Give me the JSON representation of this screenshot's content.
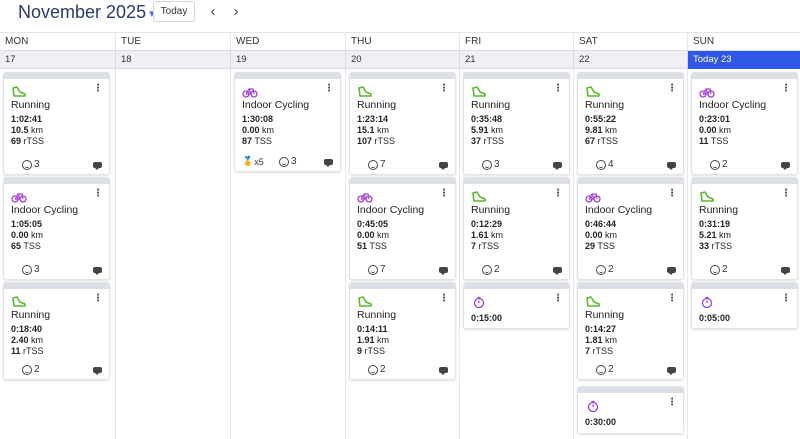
{
  "header": {
    "month_title": "November 2025",
    "today_button": "Today",
    "prev_label": "‹",
    "next_label": "›"
  },
  "colors": {
    "today_blue": "#2f57e6",
    "run_green": "#5cb82e",
    "cycle_purple": "#a23fd6",
    "timer_purple": "#9b3fe0"
  },
  "days": [
    {
      "name": "MON",
      "date": "17"
    },
    {
      "name": "TUE",
      "date": "18"
    },
    {
      "name": "WED",
      "date": "19"
    },
    {
      "name": "THU",
      "date": "20"
    },
    {
      "name": "FRI",
      "date": "21"
    },
    {
      "name": "SAT",
      "date": "22"
    },
    {
      "name": "SUN",
      "date": "Today 23"
    }
  ],
  "workouts": {
    "mon": [
      {
        "sport": "Running",
        "icon": "shoe-icon",
        "time": "1:02:41",
        "dist": "10.5",
        "dist_unit": "km",
        "load": "69",
        "load_unit": "rTSS",
        "feel": "3"
      },
      {
        "sport": "Indoor Cycling",
        "icon": "bike-icon",
        "time": "1:05:05",
        "dist": "0.00",
        "dist_unit": "km",
        "load": "65",
        "load_unit": "TSS",
        "feel": "3"
      },
      {
        "sport": "Running",
        "icon": "shoe-icon",
        "time": "0:18:40",
        "dist": "2.40",
        "dist_unit": "km",
        "load": "11",
        "load_unit": "rTSS",
        "feel": "2"
      }
    ],
    "wed": [
      {
        "sport": "Indoor Cycling",
        "icon": "bike-icon",
        "time": "1:30:08",
        "dist": "0.00",
        "dist_unit": "km",
        "load": "87",
        "load_unit": "TSS",
        "medals": "x5",
        "feel": "3"
      }
    ],
    "thu": [
      {
        "sport": "Running",
        "icon": "shoe-icon",
        "time": "1:23:14",
        "dist": "15.1",
        "dist_unit": "km",
        "load": "107",
        "load_unit": "rTSS",
        "feel": "7"
      },
      {
        "sport": "Indoor Cycling",
        "icon": "bike-icon",
        "time": "0:45:05",
        "dist": "0.00",
        "dist_unit": "km",
        "load": "51",
        "load_unit": "TSS",
        "feel": "7"
      },
      {
        "sport": "Running",
        "icon": "shoe-icon",
        "time": "0:14:11",
        "dist": "1.91",
        "dist_unit": "km",
        "load": "9",
        "load_unit": "rTSS",
        "feel": "2"
      }
    ],
    "fri": [
      {
        "sport": "Running",
        "icon": "shoe-icon",
        "time": "0:35:48",
        "dist": "5.91",
        "dist_unit": "km",
        "load": "37",
        "load_unit": "rTSS",
        "feel": "3"
      },
      {
        "sport": "Running",
        "icon": "shoe-icon",
        "time": "0:12:29",
        "dist": "1.61",
        "dist_unit": "km",
        "load": "7",
        "load_unit": "rTSS",
        "feel": "2"
      },
      {
        "icon": "timer-icon",
        "time": "0:15:00"
      }
    ],
    "sat": [
      {
        "sport": "Running",
        "icon": "shoe-icon",
        "time": "0:55:22",
        "dist": "9.81",
        "dist_unit": "km",
        "load": "67",
        "load_unit": "rTSS",
        "feel": "4"
      },
      {
        "sport": "Indoor Cycling",
        "icon": "bike-icon",
        "time": "0:46:44",
        "dist": "0.00",
        "dist_unit": "km",
        "load": "29",
        "load_unit": "TSS",
        "feel": "2"
      },
      {
        "sport": "Running",
        "icon": "shoe-icon",
        "time": "0:14:27",
        "dist": "1.81",
        "dist_unit": "km",
        "load": "7",
        "load_unit": "rTSS",
        "feel": "2"
      },
      {
        "icon": "timer-icon",
        "time": "0:30:00"
      }
    ],
    "sun": [
      {
        "sport": "Indoor Cycling",
        "icon": "bike-icon",
        "time": "0:23:01",
        "dist": "0.00",
        "dist_unit": "km",
        "load": "11",
        "load_unit": "TSS",
        "feel": "2"
      },
      {
        "sport": "Running",
        "icon": "shoe-icon",
        "time": "0:31:19",
        "dist": "5.21",
        "dist_unit": "km",
        "load": "33",
        "load_unit": "rTSS",
        "feel": "2"
      },
      {
        "icon": "timer-icon",
        "time": "0:05:00"
      }
    ]
  }
}
